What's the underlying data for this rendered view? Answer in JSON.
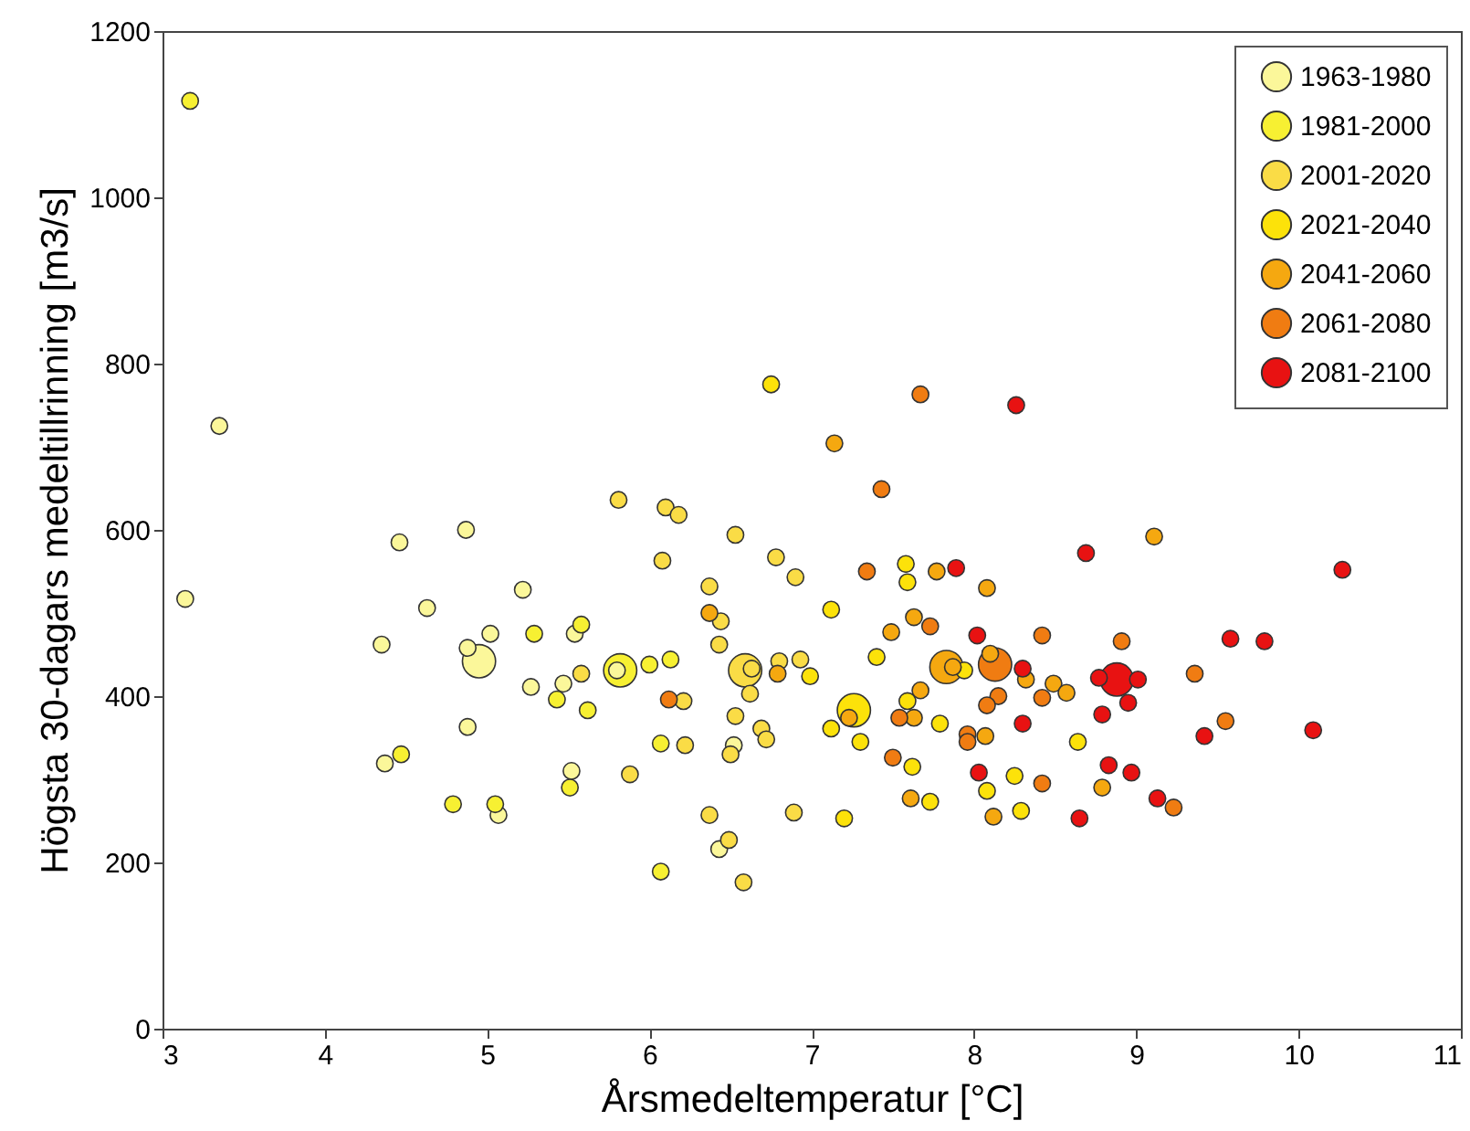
{
  "chart_data": {
    "type": "bubble",
    "xlabel": "Årsmedeltemperatur [°C]",
    "ylabel": "Högsta 30-dagars medeltillrinning [m3/s]",
    "xlim": [
      3,
      11
    ],
    "xticks": [
      3,
      4,
      5,
      6,
      7,
      8,
      9,
      10,
      11
    ],
    "ylim": [
      0,
      1200
    ],
    "yticks": [
      0,
      200,
      400,
      600,
      800,
      1000,
      1200
    ],
    "grid": false,
    "legend": "top right",
    "marker": "circle",
    "series": [
      {
        "name": "1963-1980",
        "color": "#fbf79a",
        "x": [
          3.35,
          3.14,
          4.46,
          4.87,
          4.63,
          4.35,
          5.22,
          5.02,
          4.88,
          4.95,
          5.54,
          5.8,
          5.27,
          5.47,
          4.88,
          4.37,
          5.52,
          5.07,
          6.52,
          6.43
        ],
        "values": [
          725,
          517,
          585,
          600,
          506,
          462,
          528,
          475,
          458,
          442,
          475,
          431,
          411,
          415,
          363,
          319,
          310,
          257,
          341,
          216
        ],
        "sizes": [
          0.25,
          0.25,
          0.25,
          0.25,
          0.25,
          0.25,
          0.25,
          0.25,
          0.25,
          1,
          0.25,
          0.25,
          0.25,
          0.25,
          0.25,
          0.25,
          0.25,
          0.25,
          0.25,
          0.25
        ]
      },
      {
        "name": "1981-2000",
        "color": "#f7f032",
        "x": [
          3.17,
          5.29,
          5.58,
          5.43,
          5.62,
          4.47,
          5.51,
          4.79,
          5.05,
          5.82,
          6.0,
          6.13,
          6.07,
          6.07
        ],
        "values": [
          1116,
          475,
          486,
          396,
          383,
          330,
          290,
          270,
          270,
          431,
          438,
          444,
          343,
          189
        ],
        "sizes": [
          0.25,
          0.25,
          0.25,
          0.25,
          0.25,
          0.25,
          0.25,
          0.25,
          0.25,
          1,
          0.25,
          0.25,
          0.25,
          0.25
        ]
      },
      {
        "name": "2001-2020",
        "color": "#fadc46",
        "x": [
          5.58,
          5.88,
          5.81,
          6.59,
          6.1,
          6.18,
          6.53,
          6.08,
          6.37,
          6.44,
          6.43,
          6.63,
          6.8,
          6.62,
          6.21,
          6.53,
          6.69,
          6.72,
          6.22,
          6.5,
          6.37,
          6.89,
          6.49,
          6.58,
          6.78,
          6.9,
          6.93
        ],
        "values": [
          427,
          306,
          636,
          431,
          627,
          618,
          594,
          563,
          532,
          490,
          462,
          433,
          442,
          403,
          394,
          376,
          361,
          348,
          341,
          330,
          257,
          260,
          227,
          176,
          567,
          543,
          444
        ],
        "sizes": [
          0.25,
          0.25,
          0.25,
          1,
          0.25,
          0.25,
          0.25,
          0.25,
          0.25,
          0.25,
          0.25,
          0.25,
          0.25,
          0.25,
          0.25,
          0.25,
          0.25,
          0.25,
          0.25,
          0.25,
          0.25,
          0.25,
          0.25,
          0.25,
          0.25,
          0.25,
          0.25
        ]
      },
      {
        "name": "2021-2040",
        "color": "#fce20a",
        "x": [
          7.26,
          6.75,
          6.99,
          7.58,
          7.59,
          7.12,
          7.4,
          7.12,
          7.3,
          7.59,
          7.79,
          7.94,
          7.62,
          8.25,
          8.08,
          7.73,
          8.29,
          7.2,
          8.64
        ],
        "values": [
          383,
          775,
          424,
          559,
          537,
          504,
          447,
          361,
          345,
          394,
          367,
          431,
          315,
          304,
          286,
          273,
          262,
          253,
          345
        ],
        "sizes": [
          1,
          0.25,
          0.25,
          0.25,
          0.25,
          0.25,
          0.25,
          0.25,
          0.25,
          0.25,
          0.25,
          0.25,
          0.25,
          0.25,
          0.25,
          0.25,
          0.25,
          0.25,
          0.25
        ]
      },
      {
        "name": "2041-2060",
        "color": "#f5a810",
        "x": [
          7.83,
          7.14,
          7.77,
          8.08,
          6.37,
          7.63,
          7.49,
          6.79,
          7.23,
          7.67,
          7.63,
          7.87,
          8.1,
          8.32,
          8.49,
          8.07,
          7.61,
          8.12,
          9.11,
          8.57,
          8.79
        ],
        "values": [
          435,
          704,
          550,
          530,
          500,
          495,
          477,
          427,
          374,
          407,
          374,
          435,
          451,
          420,
          415,
          352,
          277,
          255,
          592,
          404,
          290
        ],
        "sizes": [
          1,
          0.25,
          0.25,
          0.25,
          0.25,
          0.25,
          0.25,
          0.25,
          0.25,
          0.25,
          0.25,
          0.25,
          0.25,
          0.25,
          0.25,
          0.25,
          0.25,
          0.25,
          0.25,
          0.25,
          0.25
        ]
      },
      {
        "name": "2061-2080",
        "color": "#f07c12",
        "x": [
          8.13,
          7.67,
          7.43,
          7.34,
          7.73,
          8.42,
          6.12,
          7.54,
          8.42,
          8.15,
          8.08,
          7.96,
          7.96,
          7.5,
          8.42,
          8.91,
          9.36,
          9.55,
          9.23
        ],
        "values": [
          438,
          763,
          649,
          550,
          484,
          473,
          396,
          374,
          398,
          400,
          389,
          354,
          345,
          326,
          295,
          466,
          427,
          370,
          266
        ],
        "sizes": [
          1,
          0.25,
          0.25,
          0.25,
          0.25,
          0.25,
          0.25,
          0.25,
          0.25,
          0.25,
          0.25,
          0.25,
          0.25,
          0.25,
          0.25,
          0.25,
          0.25,
          0.25,
          0.25
        ]
      },
      {
        "name": "2081-2100",
        "color": "#e81212",
        "x": [
          8.88,
          8.26,
          7.89,
          8.02,
          8.3,
          8.3,
          8.03,
          8.69,
          10.27,
          9.58,
          9.79,
          8.77,
          9.01,
          8.95,
          8.79,
          9.42,
          10.09,
          8.83,
          8.97,
          9.13,
          8.65
        ],
        "values": [
          420,
          750,
          554,
          473,
          433,
          367,
          308,
          572,
          552,
          469,
          466,
          422,
          420,
          392,
          378,
          352,
          359,
          317,
          308,
          277,
          253
        ],
        "sizes": [
          1,
          0.25,
          0.25,
          0.25,
          0.25,
          0.25,
          0.25,
          0.25,
          0.25,
          0.25,
          0.25,
          0.25,
          0.25,
          0.25,
          0.25,
          0.25,
          0.25,
          0.25,
          0.25,
          0.25,
          0.25
        ]
      }
    ]
  }
}
